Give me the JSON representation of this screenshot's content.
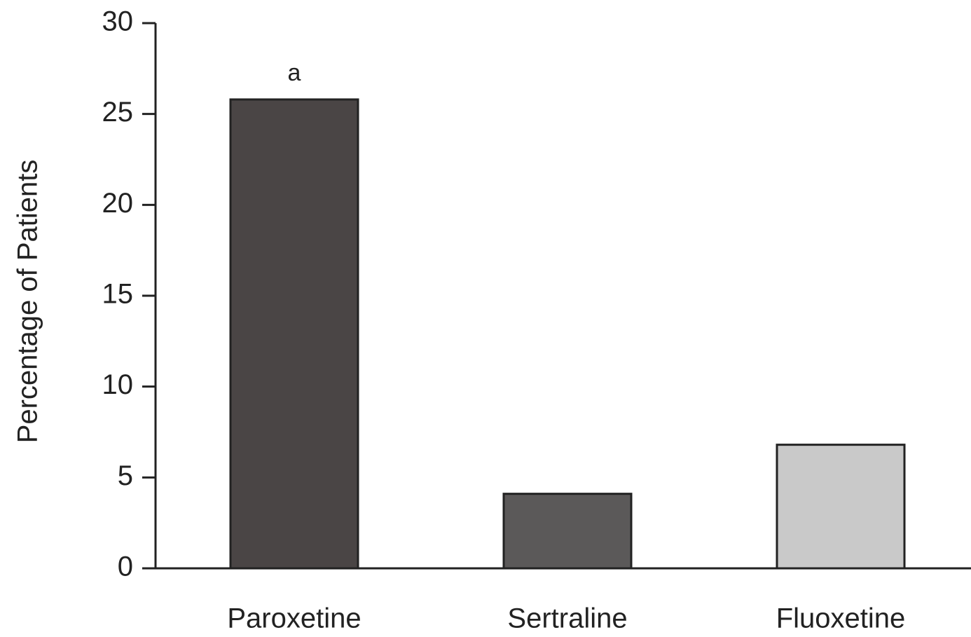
{
  "chart_data": {
    "type": "bar",
    "y_label": "Percentage of Patients",
    "categories": [
      "Paroxetine",
      "Sertraline",
      "Fluoxetine"
    ],
    "values": [
      25.8,
      4.1,
      6.8
    ],
    "colors": [
      "#4a4545",
      "#5b5959",
      "#c9c9c9"
    ],
    "annotation": "a",
    "ylim": [
      0,
      30
    ],
    "yticks": [
      0,
      5,
      10,
      15,
      20,
      25,
      30
    ],
    "grid": false
  }
}
